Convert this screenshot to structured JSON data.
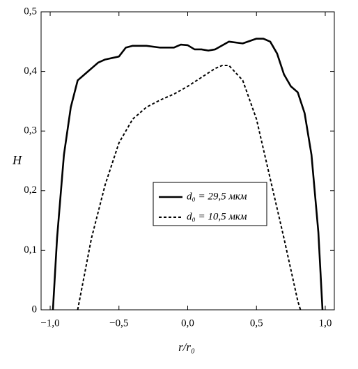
{
  "chart_data": {
    "type": "line",
    "xlabel": "r/r₀",
    "ylabel": "H",
    "xlim": [
      -1.066,
      1.066
    ],
    "ylim": [
      0,
      0.5
    ],
    "xticks": [
      {
        "value": -1,
        "label": "−1,0"
      },
      {
        "value": -0.5,
        "label": "−0,5"
      },
      {
        "value": 0,
        "label": "0,0"
      },
      {
        "value": 0.5,
        "label": "0,5"
      },
      {
        "value": 1,
        "label": "1,0"
      }
    ],
    "yticks": [
      0,
      {
        "value": 0.1,
        "label": "0,1"
      },
      {
        "value": 0.2,
        "label": "0,2"
      },
      {
        "value": 0.3,
        "label": "0,3"
      },
      {
        "value": 0.4,
        "label": "0,4"
      },
      {
        "value": 0.5,
        "label": "0,5"
      }
    ],
    "series": [
      {
        "name": "d₀ = 29,5 мкм",
        "color": "#000000",
        "style": "solid",
        "x": [
          -0.98,
          -0.95,
          -0.9,
          -0.85,
          -0.8,
          -0.75,
          -0.7,
          -0.65,
          -0.6,
          -0.5,
          -0.45,
          -0.4,
          -0.3,
          -0.2,
          -0.1,
          -0.05,
          0,
          0.05,
          0.1,
          0.15,
          0.2,
          0.3,
          0.4,
          0.5,
          0.55,
          0.6,
          0.65,
          0.7,
          0.75,
          0.8,
          0.85,
          0.9,
          0.95,
          0.98
        ],
        "values": [
          0,
          0.12,
          0.26,
          0.34,
          0.385,
          0.395,
          0.405,
          0.415,
          0.42,
          0.425,
          0.44,
          0.443,
          0.443,
          0.44,
          0.44,
          0.445,
          0.444,
          0.437,
          0.437,
          0.435,
          0.437,
          0.45,
          0.447,
          0.455,
          0.455,
          0.45,
          0.43,
          0.395,
          0.375,
          0.365,
          0.33,
          0.26,
          0.13,
          0
        ]
      },
      {
        "name": "d₀ = 10,5 мкм",
        "color": "#000000",
        "style": "dashed",
        "x": [
          -0.8,
          -0.75,
          -0.7,
          -0.6,
          -0.5,
          -0.4,
          -0.3,
          -0.2,
          -0.1,
          0,
          0.1,
          0.2,
          0.25,
          0.3,
          0.4,
          0.5,
          0.6,
          0.7,
          0.8,
          0.82
        ],
        "values": [
          0,
          0.06,
          0.12,
          0.21,
          0.28,
          0.32,
          0.34,
          0.352,
          0.362,
          0.375,
          0.39,
          0.405,
          0.41,
          0.41,
          0.385,
          0.32,
          0.22,
          0.12,
          0.015,
          0
        ]
      }
    ]
  }
}
